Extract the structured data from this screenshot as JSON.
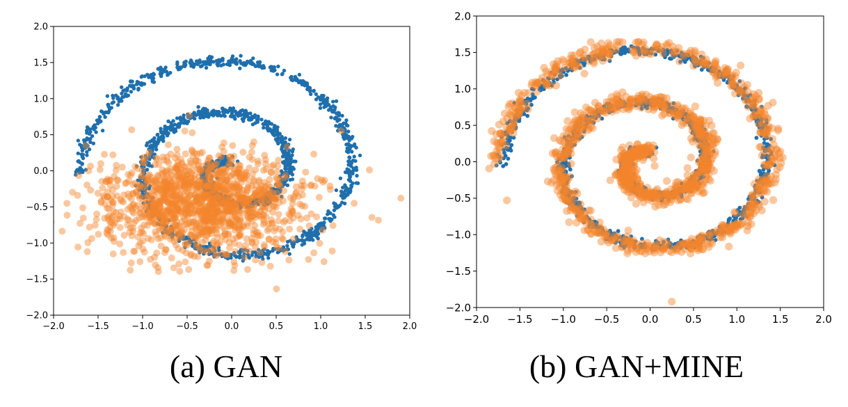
{
  "colors": {
    "real": "#1f6fad",
    "generated": "#f5852d"
  },
  "captions": {
    "a": "(a) GAN",
    "b": "(b) GAN+MINE"
  },
  "chart_data": [
    {
      "type": "scatter",
      "caption": "(a) GAN",
      "xlim": [
        -2.0,
        2.0
      ],
      "ylim": [
        -2.0,
        2.0
      ],
      "xticks": [
        "−2.0",
        "−1.5",
        "−1.0",
        "−0.5",
        "0.0",
        "0.5",
        "1.0",
        "1.5",
        "2.0"
      ],
      "yticks": [
        "−2.0",
        "−1.5",
        "−1.0",
        "−0.5",
        "0.0",
        "0.5",
        "1.0",
        "1.5",
        "2.0"
      ],
      "grid": false,
      "series": [
        {
          "role": "real",
          "color": "#1f6fad",
          "shape": "spiral",
          "turns": 2.25,
          "r_min": 0.1,
          "r_max": 1.7,
          "center": [
            0.0,
            0.0
          ],
          "points": 1600
        },
        {
          "role": "generated",
          "color": "#f5852d",
          "shape": "collapsed-cluster",
          "center": [
            -0.35,
            -0.45
          ],
          "spread": [
            0.55,
            0.35
          ],
          "points": 1400,
          "outliers": [
            [
              1.9,
              -0.38
            ],
            [
              -1.85,
              -0.45
            ],
            [
              -1.62,
              -1.12
            ]
          ]
        }
      ]
    },
    {
      "type": "scatter",
      "caption": "(b) GAN+MINE",
      "xlim": [
        -2.0,
        2.0
      ],
      "ylim": [
        -2.0,
        2.0
      ],
      "xticks": [
        "−2.0",
        "−1.5",
        "−1.0",
        "−0.5",
        "0.0",
        "0.5",
        "1.0",
        "1.5",
        "2.0"
      ],
      "yticks": [
        "−2.0",
        "−1.5",
        "−1.0",
        "−0.5",
        "0.0",
        "0.5",
        "1.0",
        "1.5",
        "2.0"
      ],
      "grid": false,
      "series": [
        {
          "role": "real",
          "color": "#1f6fad",
          "shape": "spiral",
          "turns": 2.25,
          "r_min": 0.1,
          "r_max": 1.7,
          "center": [
            0.0,
            0.0
          ],
          "points": 1600
        },
        {
          "role": "generated",
          "color": "#f5852d",
          "shape": "spiral",
          "turns": 2.25,
          "r_min": 0.1,
          "r_max": 1.75,
          "center": [
            0.0,
            0.0
          ],
          "points": 1400,
          "outliers": [
            [
              -1.65,
              -0.53
            ],
            [
              0.25,
              -1.92
            ]
          ]
        }
      ]
    }
  ]
}
